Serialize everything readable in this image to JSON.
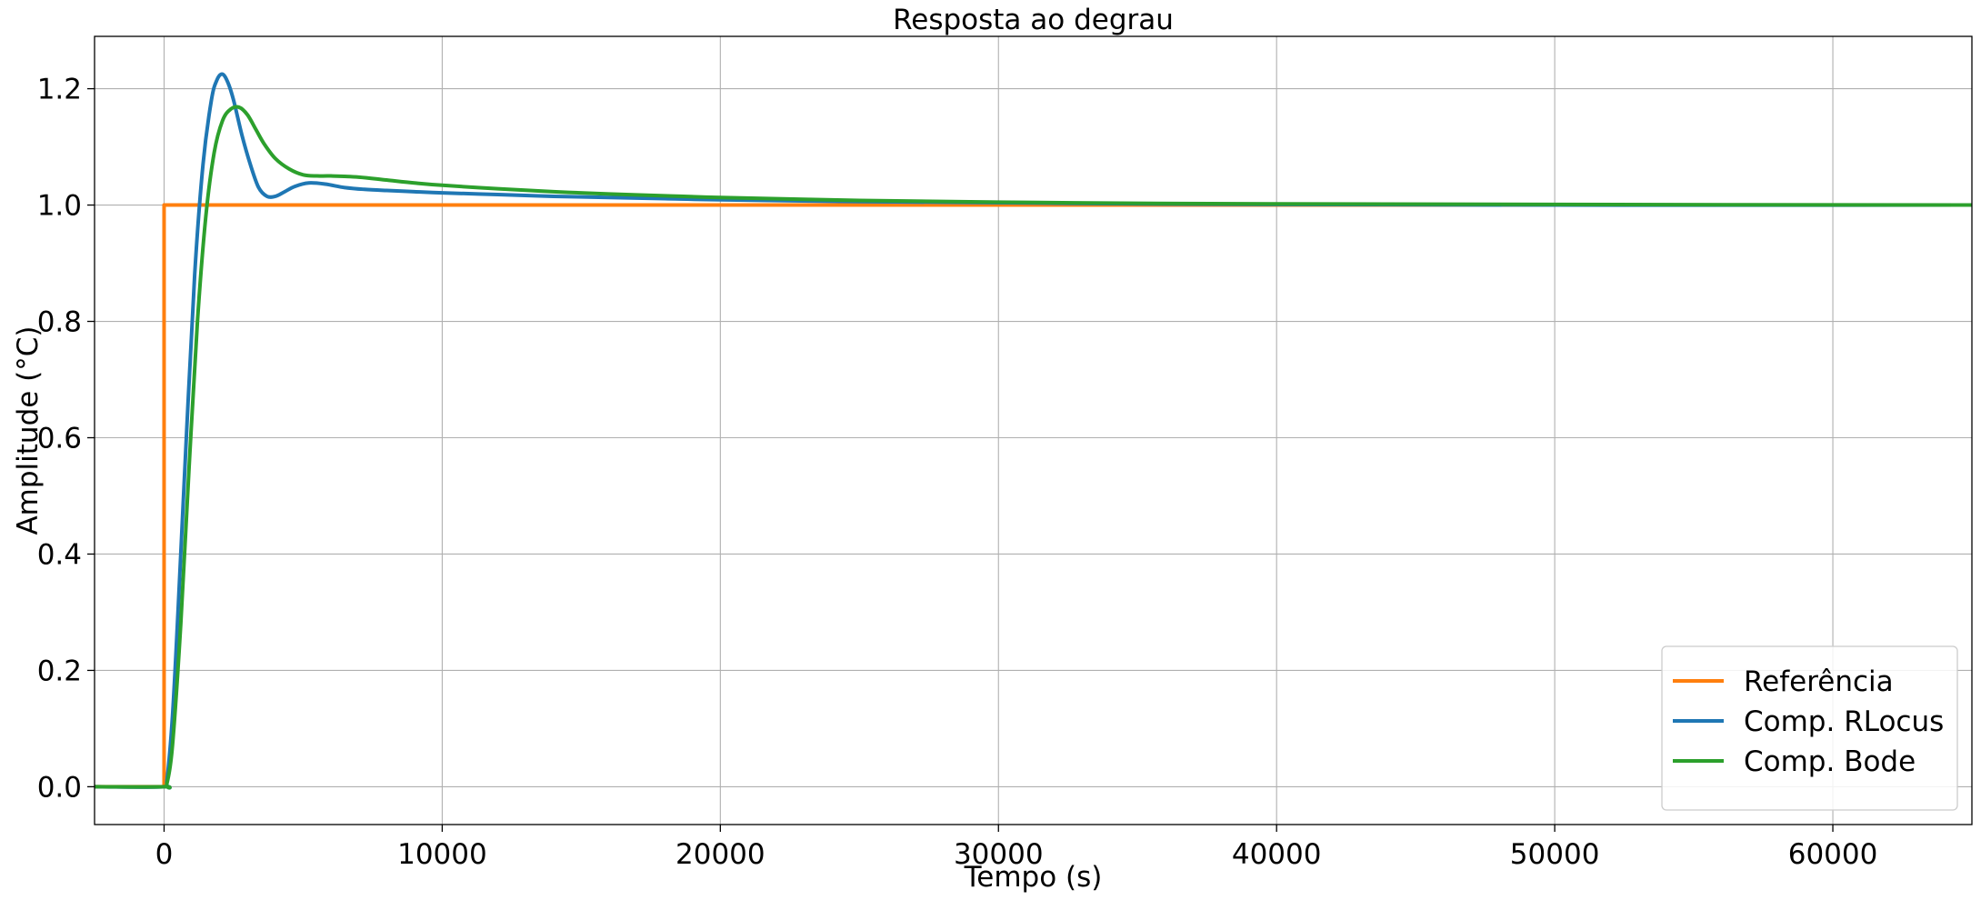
{
  "chart_data": {
    "type": "line",
    "title": "Resposta ao degrau",
    "xlabel": "Tempo (s)",
    "ylabel": "Amplitude (°C)",
    "xlim": [
      -2500,
      65000
    ],
    "ylim": [
      -0.065,
      1.29
    ],
    "x_ticks": [
      0,
      10000,
      20000,
      30000,
      40000,
      50000,
      60000
    ],
    "x_tick_labels": [
      "0",
      "10000",
      "20000",
      "30000",
      "40000",
      "50000",
      "60000"
    ],
    "y_ticks": [
      0.0,
      0.2,
      0.4,
      0.6,
      0.8,
      1.0,
      1.2
    ],
    "y_tick_labels": [
      "0.0",
      "0.2",
      "0.4",
      "0.6",
      "0.8",
      "1.0",
      "1.2"
    ],
    "grid": true,
    "legend_position": "bottom-right",
    "colors": {
      "Referência": "#ff7f0e",
      "Comp. RLocus": "#1f77b4",
      "Comp. Bode": "#2ca02c"
    },
    "series": [
      {
        "name": "Referência",
        "color": "#ff7f0e",
        "x": [
          -2500,
          0,
          0,
          65000
        ],
        "y": [
          0.0,
          0.0,
          1.0,
          1.0
        ]
      },
      {
        "name": "Comp. RLocus",
        "color": "#1f77b4",
        "x": [
          -2500,
          0,
          100,
          300,
          500,
          800,
          1100,
          1400,
          1700,
          1900,
          2100,
          2300,
          2500,
          2800,
          3100,
          3400,
          3700,
          4000,
          4300,
          4700,
          5200,
          5800,
          6500,
          7200,
          8000,
          9000,
          10000,
          12000,
          14000,
          16000,
          18000,
          20000,
          25000,
          30000,
          35000,
          40000,
          50000,
          65000
        ],
        "y": [
          0.0,
          0.0,
          0.01,
          0.12,
          0.3,
          0.6,
          0.88,
          1.07,
          1.18,
          1.215,
          1.225,
          1.21,
          1.18,
          1.12,
          1.07,
          1.03,
          1.015,
          1.015,
          1.022,
          1.032,
          1.038,
          1.036,
          1.03,
          1.027,
          1.025,
          1.023,
          1.021,
          1.018,
          1.015,
          1.013,
          1.011,
          1.009,
          1.006,
          1.004,
          1.002,
          1.001,
          1.0,
          1.0
        ]
      },
      {
        "name": "Comp. Bode",
        "color": "#2ca02c",
        "x": [
          -2500,
          0,
          100,
          300,
          600,
          900,
          1200,
          1500,
          1800,
          2100,
          2400,
          2700,
          3000,
          3300,
          3600,
          4000,
          4500,
          5000,
          5500,
          6000,
          7000,
          8000,
          9000,
          10000,
          12000,
          14000,
          16000,
          18000,
          20000,
          25000,
          30000,
          35000,
          40000,
          50000,
          65000
        ],
        "y": [
          0.0,
          0.0,
          0.005,
          0.07,
          0.28,
          0.55,
          0.8,
          0.98,
          1.09,
          1.145,
          1.165,
          1.168,
          1.155,
          1.13,
          1.105,
          1.08,
          1.062,
          1.052,
          1.05,
          1.05,
          1.048,
          1.043,
          1.038,
          1.034,
          1.028,
          1.023,
          1.019,
          1.016,
          1.013,
          1.008,
          1.005,
          1.003,
          1.002,
          1.001,
          1.0
        ]
      }
    ]
  }
}
